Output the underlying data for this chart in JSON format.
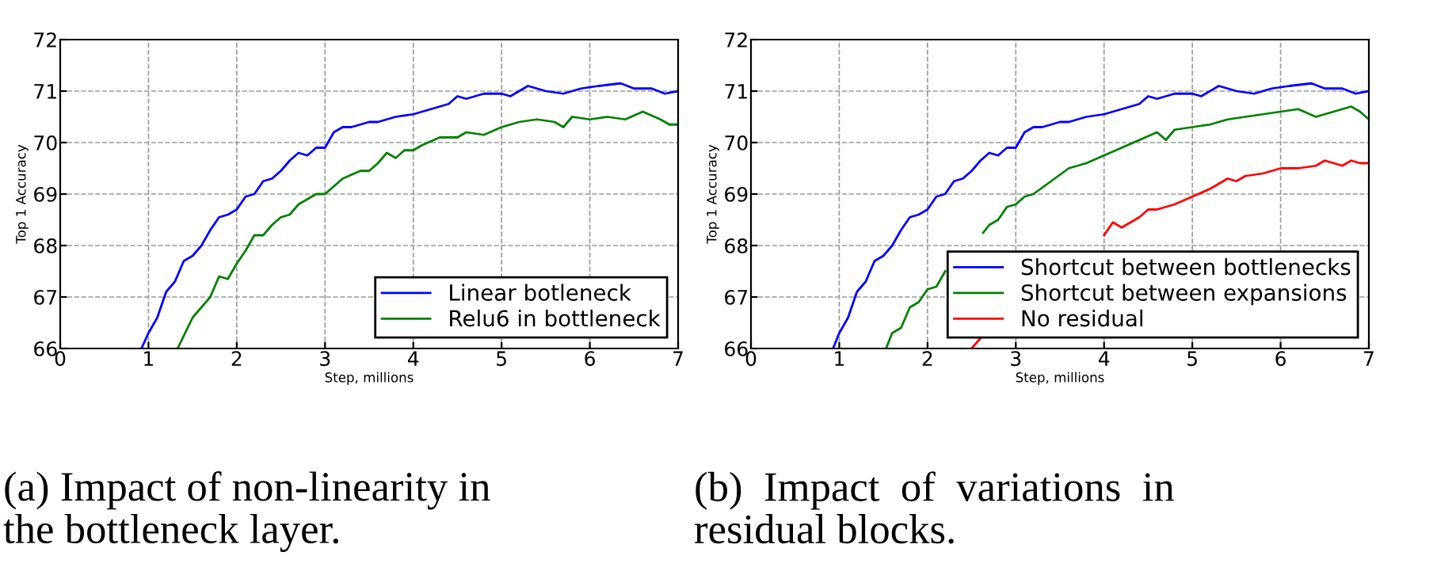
{
  "chart_data": [
    {
      "type": "line",
      "xlabel": "Step, millions",
      "ylabel": "Top 1 Accuracy",
      "xlim": [
        0,
        7
      ],
      "xticks": [
        0,
        1,
        2,
        3,
        4,
        5,
        6,
        7
      ],
      "ylim": [
        66,
        72
      ],
      "yticks": [
        66,
        67,
        68,
        69,
        70,
        71,
        72
      ],
      "grid": true,
      "legend": "bottom right",
      "line_style": "solid",
      "annotations": [
        "(a) Impact of non-linearity in\nthe bottleneck layer."
      ],
      "series": [
        {
          "name": "Linear botleneck",
          "color": "#0000ff",
          "x": [
            0.92,
            1.0,
            1.1,
            1.2,
            1.3,
            1.4,
            1.5,
            1.6,
            1.7,
            1.8,
            1.9,
            2.0,
            2.1,
            2.2,
            2.3,
            2.4,
            2.5,
            2.6,
            2.7,
            2.8,
            2.9,
            3.0,
            3.1,
            3.2,
            3.3,
            3.4,
            3.5,
            3.6,
            3.8,
            4.0,
            4.2,
            4.4,
            4.5,
            4.6,
            4.8,
            5.0,
            5.1,
            5.3,
            5.5,
            5.7,
            5.9,
            6.1,
            6.35,
            6.5,
            6.7,
            6.85,
            7.0
          ],
          "values": [
            66.0,
            66.3,
            66.6,
            67.1,
            67.3,
            67.7,
            67.8,
            68.0,
            68.3,
            68.55,
            68.6,
            68.7,
            68.95,
            69.0,
            69.25,
            69.3,
            69.45,
            69.65,
            69.8,
            69.75,
            69.9,
            69.9,
            70.2,
            70.3,
            70.3,
            70.35,
            70.4,
            70.4,
            70.5,
            70.55,
            70.65,
            70.75,
            70.9,
            70.85,
            70.95,
            70.95,
            70.9,
            71.1,
            71.0,
            70.95,
            71.05,
            71.1,
            71.15,
            71.05,
            71.05,
            70.95,
            71.0
          ]
        },
        {
          "name": "Relu6 in bottleneck",
          "color": "#008000",
          "x": [
            1.33,
            1.5,
            1.7,
            1.8,
            1.9,
            2.0,
            2.1,
            2.2,
            2.3,
            2.4,
            2.5,
            2.6,
            2.7,
            2.8,
            2.9,
            3.0,
            3.2,
            3.4,
            3.5,
            3.6,
            3.7,
            3.8,
            3.9,
            4.0,
            4.1,
            4.3,
            4.5,
            4.6,
            4.8,
            5.0,
            5.2,
            5.4,
            5.6,
            5.7,
            5.8,
            6.0,
            6.2,
            6.4,
            6.6,
            6.8,
            6.9,
            7.0
          ],
          "values": [
            66.0,
            66.6,
            67.0,
            67.4,
            67.35,
            67.65,
            67.9,
            68.2,
            68.2,
            68.4,
            68.55,
            68.6,
            68.8,
            68.9,
            69.0,
            69.0,
            69.3,
            69.45,
            69.45,
            69.6,
            69.8,
            69.7,
            69.85,
            69.85,
            69.95,
            70.1,
            70.1,
            70.2,
            70.15,
            70.3,
            70.4,
            70.45,
            70.4,
            70.3,
            70.5,
            70.45,
            70.5,
            70.45,
            70.6,
            70.45,
            70.35,
            70.35
          ]
        }
      ]
    },
    {
      "type": "line",
      "xlabel": "Step, millions",
      "ylabel": "Top 1 Accuracy",
      "xlim": [
        0,
        7
      ],
      "xticks": [
        0,
        1,
        2,
        3,
        4,
        5,
        6,
        7
      ],
      "ylim": [
        66,
        72
      ],
      "yticks": [
        66,
        67,
        68,
        69,
        70,
        71,
        72
      ],
      "grid": true,
      "legend": "bottom right",
      "line_style": "solid",
      "annotations": [
        "(b)  Impact  of  variations  in\nresidual blocks."
      ],
      "series": [
        {
          "name": "Shortcut between bottlenecks",
          "color": "#0000ff",
          "x": [
            0.93,
            1.0,
            1.1,
            1.2,
            1.3,
            1.4,
            1.5,
            1.6,
            1.7,
            1.8,
            1.9,
            2.0,
            2.1,
            2.2,
            2.3,
            2.4,
            2.5,
            2.6,
            2.7,
            2.8,
            2.9,
            3.0,
            3.1,
            3.2,
            3.3,
            3.4,
            3.5,
            3.6,
            3.8,
            4.0,
            4.2,
            4.4,
            4.5,
            4.6,
            4.8,
            5.0,
            5.1,
            5.3,
            5.5,
            5.7,
            5.9,
            6.1,
            6.35,
            6.5,
            6.7,
            6.85,
            7.0
          ],
          "values": [
            66.0,
            66.3,
            66.6,
            67.1,
            67.3,
            67.7,
            67.8,
            68.0,
            68.3,
            68.55,
            68.6,
            68.7,
            68.95,
            69.0,
            69.25,
            69.3,
            69.45,
            69.65,
            69.8,
            69.75,
            69.9,
            69.9,
            70.2,
            70.3,
            70.3,
            70.35,
            70.4,
            70.4,
            70.5,
            70.55,
            70.65,
            70.75,
            70.9,
            70.85,
            70.95,
            70.95,
            70.9,
            71.1,
            71.0,
            70.95,
            71.05,
            71.1,
            71.15,
            71.05,
            71.05,
            70.95,
            71.0
          ]
        },
        {
          "name": "Shortcut between expansions",
          "color": "#008000",
          "x": [
            1.53,
            1.6,
            1.7,
            1.8,
            1.9,
            2.0,
            2.1,
            2.2,
            2.4,
            2.63,
            2.7,
            2.8,
            2.9,
            3.0,
            3.1,
            3.2,
            3.4,
            3.6,
            3.8,
            4.0,
            4.2,
            4.4,
            4.6,
            4.7,
            4.8,
            5.0,
            5.2,
            5.4,
            5.6,
            5.8,
            6.0,
            6.2,
            6.4,
            6.6,
            6.8,
            6.9,
            7.0
          ],
          "values": [
            66.0,
            66.3,
            66.4,
            66.8,
            66.9,
            67.15,
            67.2,
            67.5,
            null,
            68.25,
            68.4,
            68.5,
            68.75,
            68.8,
            68.95,
            69.0,
            69.25,
            69.5,
            69.6,
            69.75,
            69.9,
            70.05,
            70.2,
            70.05,
            70.25,
            70.3,
            70.35,
            70.45,
            70.5,
            70.55,
            70.6,
            70.65,
            70.5,
            70.6,
            70.7,
            70.6,
            70.45
          ]
        },
        {
          "name": "No residual",
          "color": "#ff0000",
          "x": [
            2.5,
            2.6,
            3.3,
            4.0,
            4.1,
            4.2,
            4.4,
            4.5,
            4.6,
            4.8,
            5.0,
            5.2,
            5.4,
            5.5,
            5.6,
            5.8,
            6.0,
            6.2,
            6.4,
            6.5,
            6.6,
            6.7,
            6.8,
            6.9,
            7.0
          ],
          "values": [
            66.0,
            66.2,
            null,
            68.2,
            68.45,
            68.35,
            68.55,
            68.7,
            68.7,
            68.8,
            68.95,
            69.1,
            69.3,
            69.25,
            69.35,
            69.4,
            69.5,
            69.5,
            69.55,
            69.65,
            69.6,
            69.55,
            69.65,
            69.6,
            69.6
          ]
        }
      ]
    }
  ]
}
